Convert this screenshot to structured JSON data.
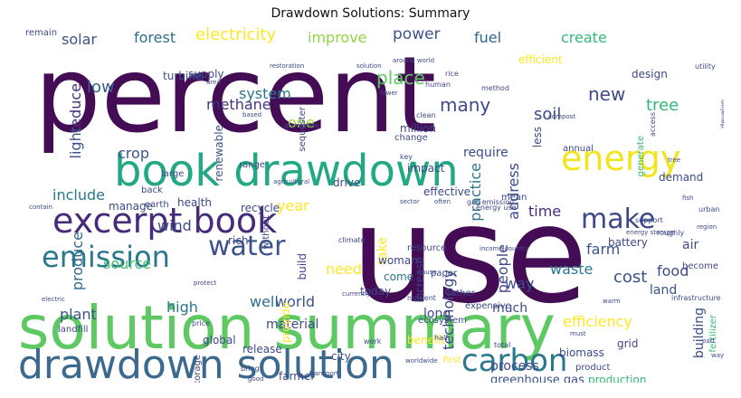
{
  "title": "Drawdown Solutions: Summary",
  "words": [
    {
      "id": "percent",
      "text": "percent",
      "color": "#440c54"
    },
    {
      "id": "use",
      "text": "use",
      "color": "#440c54"
    },
    {
      "id": "solution_summary",
      "text": "solution summary",
      "color": "#5ec962"
    },
    {
      "id": "book_drawdown",
      "text": "book drawdown",
      "color": "#22a884"
    },
    {
      "id": "drawdown_solution",
      "text": "drawdown solution",
      "color": "#3b6a8e"
    },
    {
      "id": "excerpt_book",
      "text": "excerpt book",
      "color": "#472a7a"
    },
    {
      "id": "emission",
      "text": "emission",
      "color": "#2a788e"
    },
    {
      "id": "water",
      "text": "water",
      "color": "#3b528b"
    },
    {
      "id": "energy",
      "text": "energy",
      "color": "#f1e51d"
    },
    {
      "id": "carbon",
      "text": "carbon",
      "color": "#2a788e"
    },
    {
      "id": "make",
      "text": "make",
      "color": "#3e4989"
    },
    {
      "id": "electricity",
      "text": "electricity",
      "color": "#fde725"
    },
    {
      "id": "forest",
      "text": "forest",
      "color": "#2e6f8e"
    },
    {
      "id": "solar",
      "text": "solar",
      "color": "#3b528b"
    },
    {
      "id": "improve",
      "text": "improve",
      "color": "#8fd744"
    },
    {
      "id": "power",
      "text": "power",
      "color": "#3b528b"
    },
    {
      "id": "fuel",
      "text": "fuel",
      "color": "#31688e"
    },
    {
      "id": "create",
      "text": "create",
      "color": "#35b779"
    },
    {
      "id": "new",
      "text": "new",
      "color": "#3e4989"
    },
    {
      "id": "reduce",
      "text": "reduce",
      "color": "#472d7b"
    },
    {
      "id": "light",
      "text": "light",
      "color": "#3b528b"
    },
    {
      "id": "low",
      "text": "low",
      "color": "#35608d"
    },
    {
      "id": "methane",
      "text": "methane",
      "color": "#46337e"
    },
    {
      "id": "system",
      "text": "system",
      "color": "#2a788e"
    },
    {
      "id": "many",
      "text": "many",
      "color": "#3e4989"
    },
    {
      "id": "place",
      "text": "place",
      "color": "#5ec962"
    },
    {
      "id": "one",
      "text": "one",
      "color": "#a0da39"
    },
    {
      "id": "soil",
      "text": "soil",
      "color": "#3e4989"
    },
    {
      "id": "tree",
      "text": "tree",
      "color": "#35b779"
    },
    {
      "id": "crop",
      "text": "crop",
      "color": "#3b528b"
    },
    {
      "id": "year",
      "text": "year",
      "color": "#fde725"
    },
    {
      "id": "include",
      "text": "include",
      "color": "#2a788e"
    },
    {
      "id": "wind",
      "text": "wind",
      "color": "#3e4989"
    },
    {
      "id": "produce",
      "text": "produce",
      "color": "#31688e"
    },
    {
      "id": "source",
      "text": "source",
      "color": "#44bf70"
    },
    {
      "id": "time",
      "text": "time",
      "color": "#472a7a"
    },
    {
      "id": "farm",
      "text": "farm",
      "color": "#3b528b"
    },
    {
      "id": "waste",
      "text": "waste",
      "color": "#2a788e"
    },
    {
      "id": "cost",
      "text": "cost",
      "color": "#3b528b"
    },
    {
      "id": "food",
      "text": "food",
      "color": "#3e4989"
    },
    {
      "id": "land",
      "text": "land",
      "color": "#3b528b"
    },
    {
      "id": "way",
      "text": "way",
      "color": "#3b528b"
    },
    {
      "id": "well",
      "text": "well",
      "color": "#2e6f8e"
    },
    {
      "id": "world",
      "text": "world",
      "color": "#3b528b"
    },
    {
      "id": "high",
      "text": "high",
      "color": "#2a788e"
    },
    {
      "id": "plant",
      "text": "plant",
      "color": "#3b528b"
    },
    {
      "id": "material",
      "text": "material",
      "color": "#3e4989"
    },
    {
      "id": "heat",
      "text": "heat",
      "color": "#3b528b"
    },
    {
      "id": "grow",
      "text": "grow",
      "color": "#3e4989"
    },
    {
      "id": "building",
      "text": "building",
      "color": "#3e4989"
    },
    {
      "id": "efficiency",
      "text": "efficiency",
      "color": "#fde725"
    },
    {
      "id": "technology",
      "text": "technology",
      "color": "#3e4989"
    },
    {
      "id": "people",
      "text": "people",
      "color": "#3e4989"
    },
    {
      "id": "take",
      "text": "take",
      "color": "#fde725"
    },
    {
      "id": "much",
      "text": "much",
      "color": "#3e4989"
    },
    {
      "id": "process",
      "text": "process",
      "color": "#3e4989"
    },
    {
      "id": "greenhouse_gas",
      "text": "greenhouse gas",
      "color": "#3b528b"
    },
    {
      "id": "production",
      "text": "production",
      "color": "#35b779"
    },
    {
      "id": "carbon_dioxide",
      "text": "carbon dioxide",
      "color": "#fde725"
    },
    {
      "id": "practice",
      "text": "practice",
      "color": "#2a788e"
    },
    {
      "id": "address",
      "text": "address",
      "color": "#3e4989"
    },
    {
      "id": "require",
      "text": "require",
      "color": "#3e4989"
    },
    {
      "id": "effective",
      "text": "effective",
      "color": "#3e4989"
    },
    {
      "id": "impact",
      "text": "impact",
      "color": "#3e4989"
    },
    {
      "id": "million",
      "text": "million",
      "color": "#3e4989"
    },
    {
      "id": "renewable",
      "text": "renewable",
      "color": "#3b528b"
    },
    {
      "id": "supply",
      "text": "supply",
      "color": "#3e4989"
    },
    {
      "id": "turbine",
      "text": "turbine",
      "color": "#3b528b"
    },
    {
      "id": "efficient",
      "text": "efficient",
      "color": "#fde725"
    },
    {
      "id": "design",
      "text": "design",
      "color": "#3e4989"
    },
    {
      "id": "less",
      "text": "less",
      "color": "#3e4989"
    },
    {
      "id": "city",
      "text": "city",
      "color": "#3b528b"
    },
    {
      "id": "car",
      "text": "car",
      "color": "#3b528b"
    },
    {
      "id": "long",
      "text": "long",
      "color": "#3e4989"
    },
    {
      "id": "benefit",
      "text": "benefit",
      "color": "#fde725"
    },
    {
      "id": "need",
      "text": "need",
      "color": "#fde725"
    },
    {
      "id": "build",
      "text": "build",
      "color": "#3e4989"
    },
    {
      "id": "come",
      "text": "come",
      "color": "#2a788e"
    },
    {
      "id": "today",
      "text": "today",
      "color": "#3e4989"
    },
    {
      "id": "increase",
      "text": "increase",
      "color": "#3e4989"
    },
    {
      "id": "biomass",
      "text": "biomass",
      "color": "#3e4989"
    },
    {
      "id": "grid",
      "text": "grid",
      "color": "#3e4989"
    },
    {
      "id": "landfill",
      "text": "landfill",
      "color": "#3e4989"
    },
    {
      "id": "global",
      "text": "global",
      "color": "#3e4989"
    },
    {
      "id": "release",
      "text": "release",
      "color": "#3e4989"
    },
    {
      "id": "farmer",
      "text": "farmer",
      "color": "#3e4989"
    },
    {
      "id": "provide",
      "text": "provide",
      "color": "#fde725"
    },
    {
      "id": "product",
      "text": "product",
      "color": "#3e4989"
    },
    {
      "id": "amount",
      "text": "amount",
      "color": "#3e4989"
    },
    {
      "id": "storage",
      "text": "storage",
      "color": "#3e4989"
    },
    {
      "id": "manage",
      "text": "manage",
      "color": "#3e4989"
    },
    {
      "id": "health",
      "text": "health",
      "color": "#3e4989"
    },
    {
      "id": "recycle",
      "text": "recycle",
      "color": "#3e4989"
    },
    {
      "id": "drive",
      "text": "drive",
      "color": "#3e4989"
    },
    {
      "id": "first",
      "text": "first",
      "color": "#fde725"
    },
    {
      "id": "battery",
      "text": "battery",
      "color": "#3e4989"
    },
    {
      "id": "demand",
      "text": "demand",
      "color": "#3e4989"
    },
    {
      "id": "generate",
      "text": "generate",
      "color": "#35b779"
    },
    {
      "id": "air",
      "text": "air",
      "color": "#3e4989"
    },
    {
      "id": "become",
      "text": "become",
      "color": "#3e4989"
    },
    {
      "id": "rich",
      "text": "rich",
      "color": "#3e4989"
    },
    {
      "id": "range",
      "text": "range",
      "color": "#3e4989"
    },
    {
      "id": "large",
      "text": "large",
      "color": "#3e4989"
    },
    {
      "id": "back",
      "text": "back",
      "color": "#3e4989"
    },
    {
      "id": "earth",
      "text": "earth",
      "color": "#3e4989"
    },
    {
      "id": "remain",
      "text": "remain",
      "color": "#3e4989"
    },
    {
      "id": "resource",
      "text": "resource",
      "color": "#3e4989"
    },
    {
      "id": "woman",
      "text": "woman",
      "color": "#3e4989"
    },
    {
      "id": "paper",
      "text": "paper",
      "color": "#3e4989"
    },
    {
      "id": "rather",
      "text": "rather",
      "color": "#3e4989"
    },
    {
      "id": "expensive",
      "text": "expensive",
      "color": "#3e4989"
    },
    {
      "id": "ecosystem",
      "text": "ecosystem",
      "color": "#3e4989"
    },
    {
      "id": "without",
      "text": "without",
      "color": "#3e4989"
    },
    {
      "id": "change",
      "text": "change",
      "color": "#3e4989"
    },
    {
      "id": "mean",
      "text": "mean",
      "color": "#3e4989"
    },
    {
      "id": "annual",
      "text": "annual",
      "color": "#3e4989"
    },
    {
      "id": "clean",
      "text": "clean",
      "color": "#3e4989"
    },
    {
      "id": "fertilizer",
      "text": "fertilizer",
      "color": "#35b779"
    },
    {
      "id": "small",
      "text": "small",
      "color": "#3e4989"
    },
    {
      "id": "consumption",
      "text": "consumption",
      "color": "#3e4989"
    },
    {
      "id": "environment",
      "text": "environment",
      "color": "#3e4989"
    },
    {
      "id": "gas_emission",
      "text": "gas emission",
      "color": "#3e4989"
    },
    {
      "id": "sequester",
      "text": "sequester",
      "color": "#3e4989"
    },
    {
      "id": "based",
      "text": "based",
      "color": "#3e4989"
    },
    {
      "id": "rice",
      "text": "rice",
      "color": "#3e4989"
    },
    {
      "id": "human",
      "text": "human",
      "color": "#3e4989"
    },
    {
      "id": "method",
      "text": "method",
      "color": "#3e4989"
    },
    {
      "id": "climate",
      "text": "climate",
      "color": "#3e4989"
    },
    {
      "id": "utility",
      "text": "utility",
      "color": "#3e4989"
    },
    {
      "id": "around_world",
      "text": "around world",
      "color": "#3e4989"
    },
    {
      "id": "restoration",
      "text": "restoration",
      "color": "#3e4989"
    },
    {
      "id": "area",
      "text": "area",
      "color": "#3e4989"
    },
    {
      "id": "support",
      "text": "support",
      "color": "#3e4989"
    },
    {
      "id": "urban",
      "text": "urban",
      "color": "#3e4989"
    },
    {
      "id": "infrastructure",
      "text": "infrastructure",
      "color": "#3e4989"
    },
    {
      "id": "develop",
      "text": "develop",
      "color": "#3e4989"
    },
    {
      "id": "electric",
      "text": "electric",
      "color": "#3e4989"
    },
    {
      "id": "currently",
      "text": "currently",
      "color": "#3e4989"
    },
    {
      "id": "transport",
      "text": "transport",
      "color": "#3e4989"
    },
    {
      "id": "heat_cool",
      "text": "heat cool",
      "color": "#3e4989"
    },
    {
      "id": "nutrient",
      "text": "nutrient",
      "color": "#3e4989"
    },
    {
      "id": "worldwide",
      "text": "worldwide",
      "color": "#3e4989"
    },
    {
      "id": "cause",
      "text": "cause",
      "color": "#3e4989"
    },
    {
      "id": "income_country",
      "text": "income country",
      "color": "#3e4989"
    },
    {
      "id": "agricultural",
      "text": "agricultural",
      "color": "#3e4989"
    },
    {
      "id": "generation",
      "text": "generation",
      "color": "#3e4989"
    },
    {
      "id": "compost",
      "text": "compost",
      "color": "#3e4989"
    },
    {
      "id": "roughly",
      "text": "roughly",
      "color": "#3e4989"
    },
    {
      "id": "region",
      "text": "region",
      "color": "#3e4989"
    },
    {
      "id": "often",
      "text": "often",
      "color": "#3e4989"
    },
    {
      "id": "key",
      "text": "key",
      "color": "#3e4989"
    },
    {
      "id": "total",
      "text": "total",
      "color": "#3e4989"
    },
    {
      "id": "work",
      "text": "work",
      "color": "#3e4989"
    },
    {
      "id": "half",
      "text": "half",
      "color": "#3e4989"
    },
    {
      "id": "two",
      "text": "two",
      "color": "#3e4989"
    },
    {
      "id": "irrigation",
      "text": "irrigation",
      "color": "#3e4989"
    },
    {
      "id": "fossil_fuel",
      "text": "fossil fuel",
      "color": "#3e4989"
    },
    {
      "id": "access",
      "text": "access",
      "color": "#3e4989"
    },
    {
      "id": "energy_use",
      "text": "energy use",
      "color": "#3e4989"
    },
    {
      "id": "price",
      "text": "price",
      "color": "#3e4989"
    },
    {
      "id": "bring",
      "text": "bring",
      "color": "#3e4989"
    },
    {
      "id": "layer",
      "text": "layer",
      "color": "#3e4989"
    },
    {
      "id": "good",
      "text": "good",
      "color": "#3e4989"
    },
    {
      "id": "fewer",
      "text": "fewer",
      "color": "#3e4989"
    },
    {
      "id": "great",
      "text": "great",
      "color": "#3e4989"
    },
    {
      "id": "stream",
      "text": "stream",
      "color": "#3e4989"
    },
    {
      "id": "sector",
      "text": "sector",
      "color": "#3e4989"
    },
    {
      "id": "solution_w",
      "text": "solution",
      "color": "#3e4989"
    },
    {
      "id": "tree_w",
      "text": "tree",
      "color": "#3e4989"
    },
    {
      "id": "fish",
      "text": "fish",
      "color": "#3e4989"
    },
    {
      "id": "fuel_w",
      "text": "fuel",
      "color": "#3e4989"
    },
    {
      "id": "contain",
      "text": "contain",
      "color": "#3e4989"
    },
    {
      "id": "protect",
      "text": "protect",
      "color": "#3e4989"
    },
    {
      "id": "cool",
      "text": "cool",
      "color": "#3e4989"
    },
    {
      "id": "must",
      "text": "must",
      "color": "#3e4989"
    },
    {
      "id": "warm",
      "text": "warm",
      "color": "#3e4989"
    },
    {
      "id": "energy_storage",
      "text": "energy storage",
      "color": "#3e4989"
    },
    {
      "id": "part",
      "text": "part",
      "color": "#3e4989"
    },
    {
      "id": "way_w",
      "text": "way",
      "color": "#3e4989"
    }
  ]
}
